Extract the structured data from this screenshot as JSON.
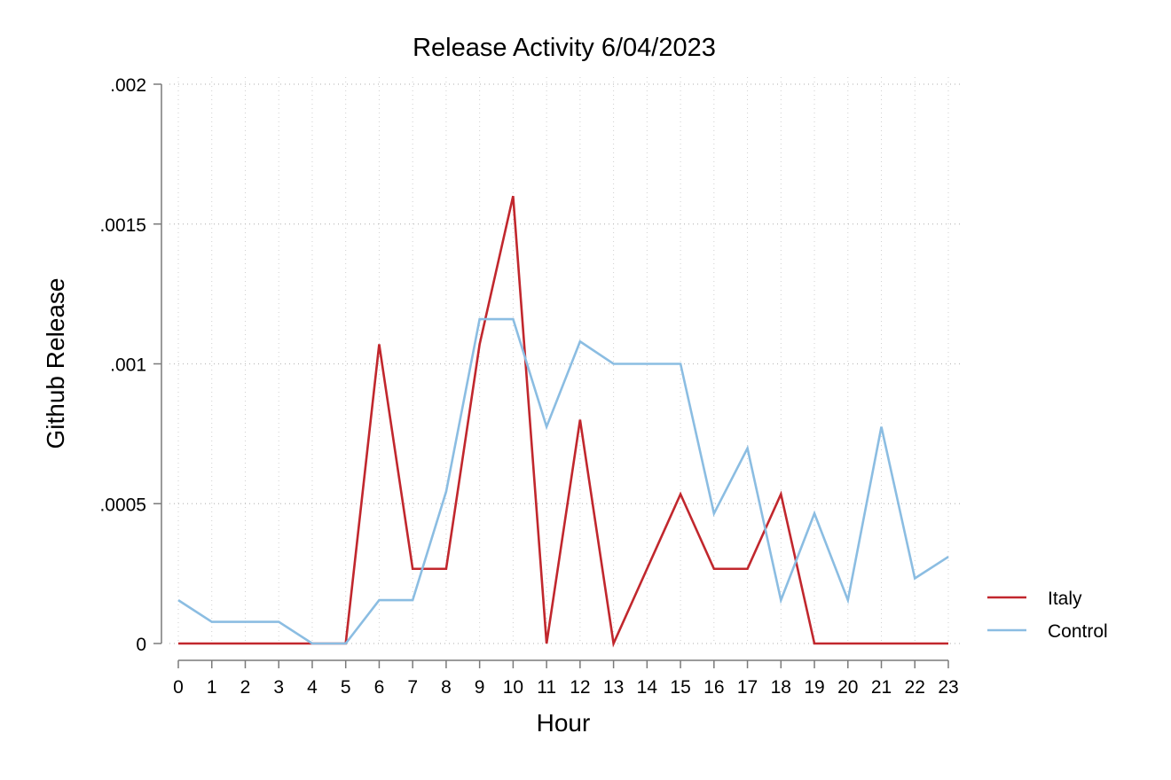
{
  "chart_data": {
    "type": "line",
    "title": "Release Activity 6/04/2023",
    "xlabel": "Hour",
    "ylabel": "Github Release",
    "x": [
      0,
      1,
      2,
      3,
      4,
      5,
      6,
      7,
      8,
      9,
      10,
      11,
      12,
      13,
      14,
      15,
      16,
      17,
      18,
      19,
      20,
      21,
      22,
      23
    ],
    "x_tick_labels": [
      "0",
      "1",
      "2",
      "3",
      "4",
      "5",
      "6",
      "7",
      "8",
      "9",
      "10",
      "11",
      "12",
      "13",
      "14",
      "15",
      "16",
      "17",
      "18",
      "19",
      "20",
      "21",
      "22",
      "23"
    ],
    "xlim": [
      0,
      23
    ],
    "ylim": [
      0,
      0.002
    ],
    "y_ticks": [
      0,
      0.0005,
      0.001,
      0.0015,
      0.002
    ],
    "y_tick_labels": [
      "0",
      ".0005",
      ".001",
      ".0015",
      ".002"
    ],
    "grid": true,
    "legend_position": "right",
    "series": [
      {
        "name": "Italy",
        "color": "#c1272d",
        "values": [
          0,
          0,
          0,
          0,
          0,
          0,
          0.00107,
          0.000267,
          0.000267,
          0.00107,
          0.0016,
          0,
          0.0008,
          0,
          0.000267,
          0.000534,
          0.000267,
          0.000267,
          0.000534,
          0,
          0,
          0,
          0,
          0
        ]
      },
      {
        "name": "Control",
        "color": "#8bbde2",
        "values": [
          0.000155,
          7.75e-05,
          7.75e-05,
          7.75e-05,
          0,
          0,
          0.000155,
          0.000155,
          0.000543,
          0.00116,
          0.00116,
          0.000775,
          0.00108,
          0.001,
          0.001,
          0.001,
          0.000465,
          0.000698,
          0.000155,
          0.000465,
          0.000155,
          0.000775,
          0.000233,
          0.00031
        ]
      }
    ]
  }
}
